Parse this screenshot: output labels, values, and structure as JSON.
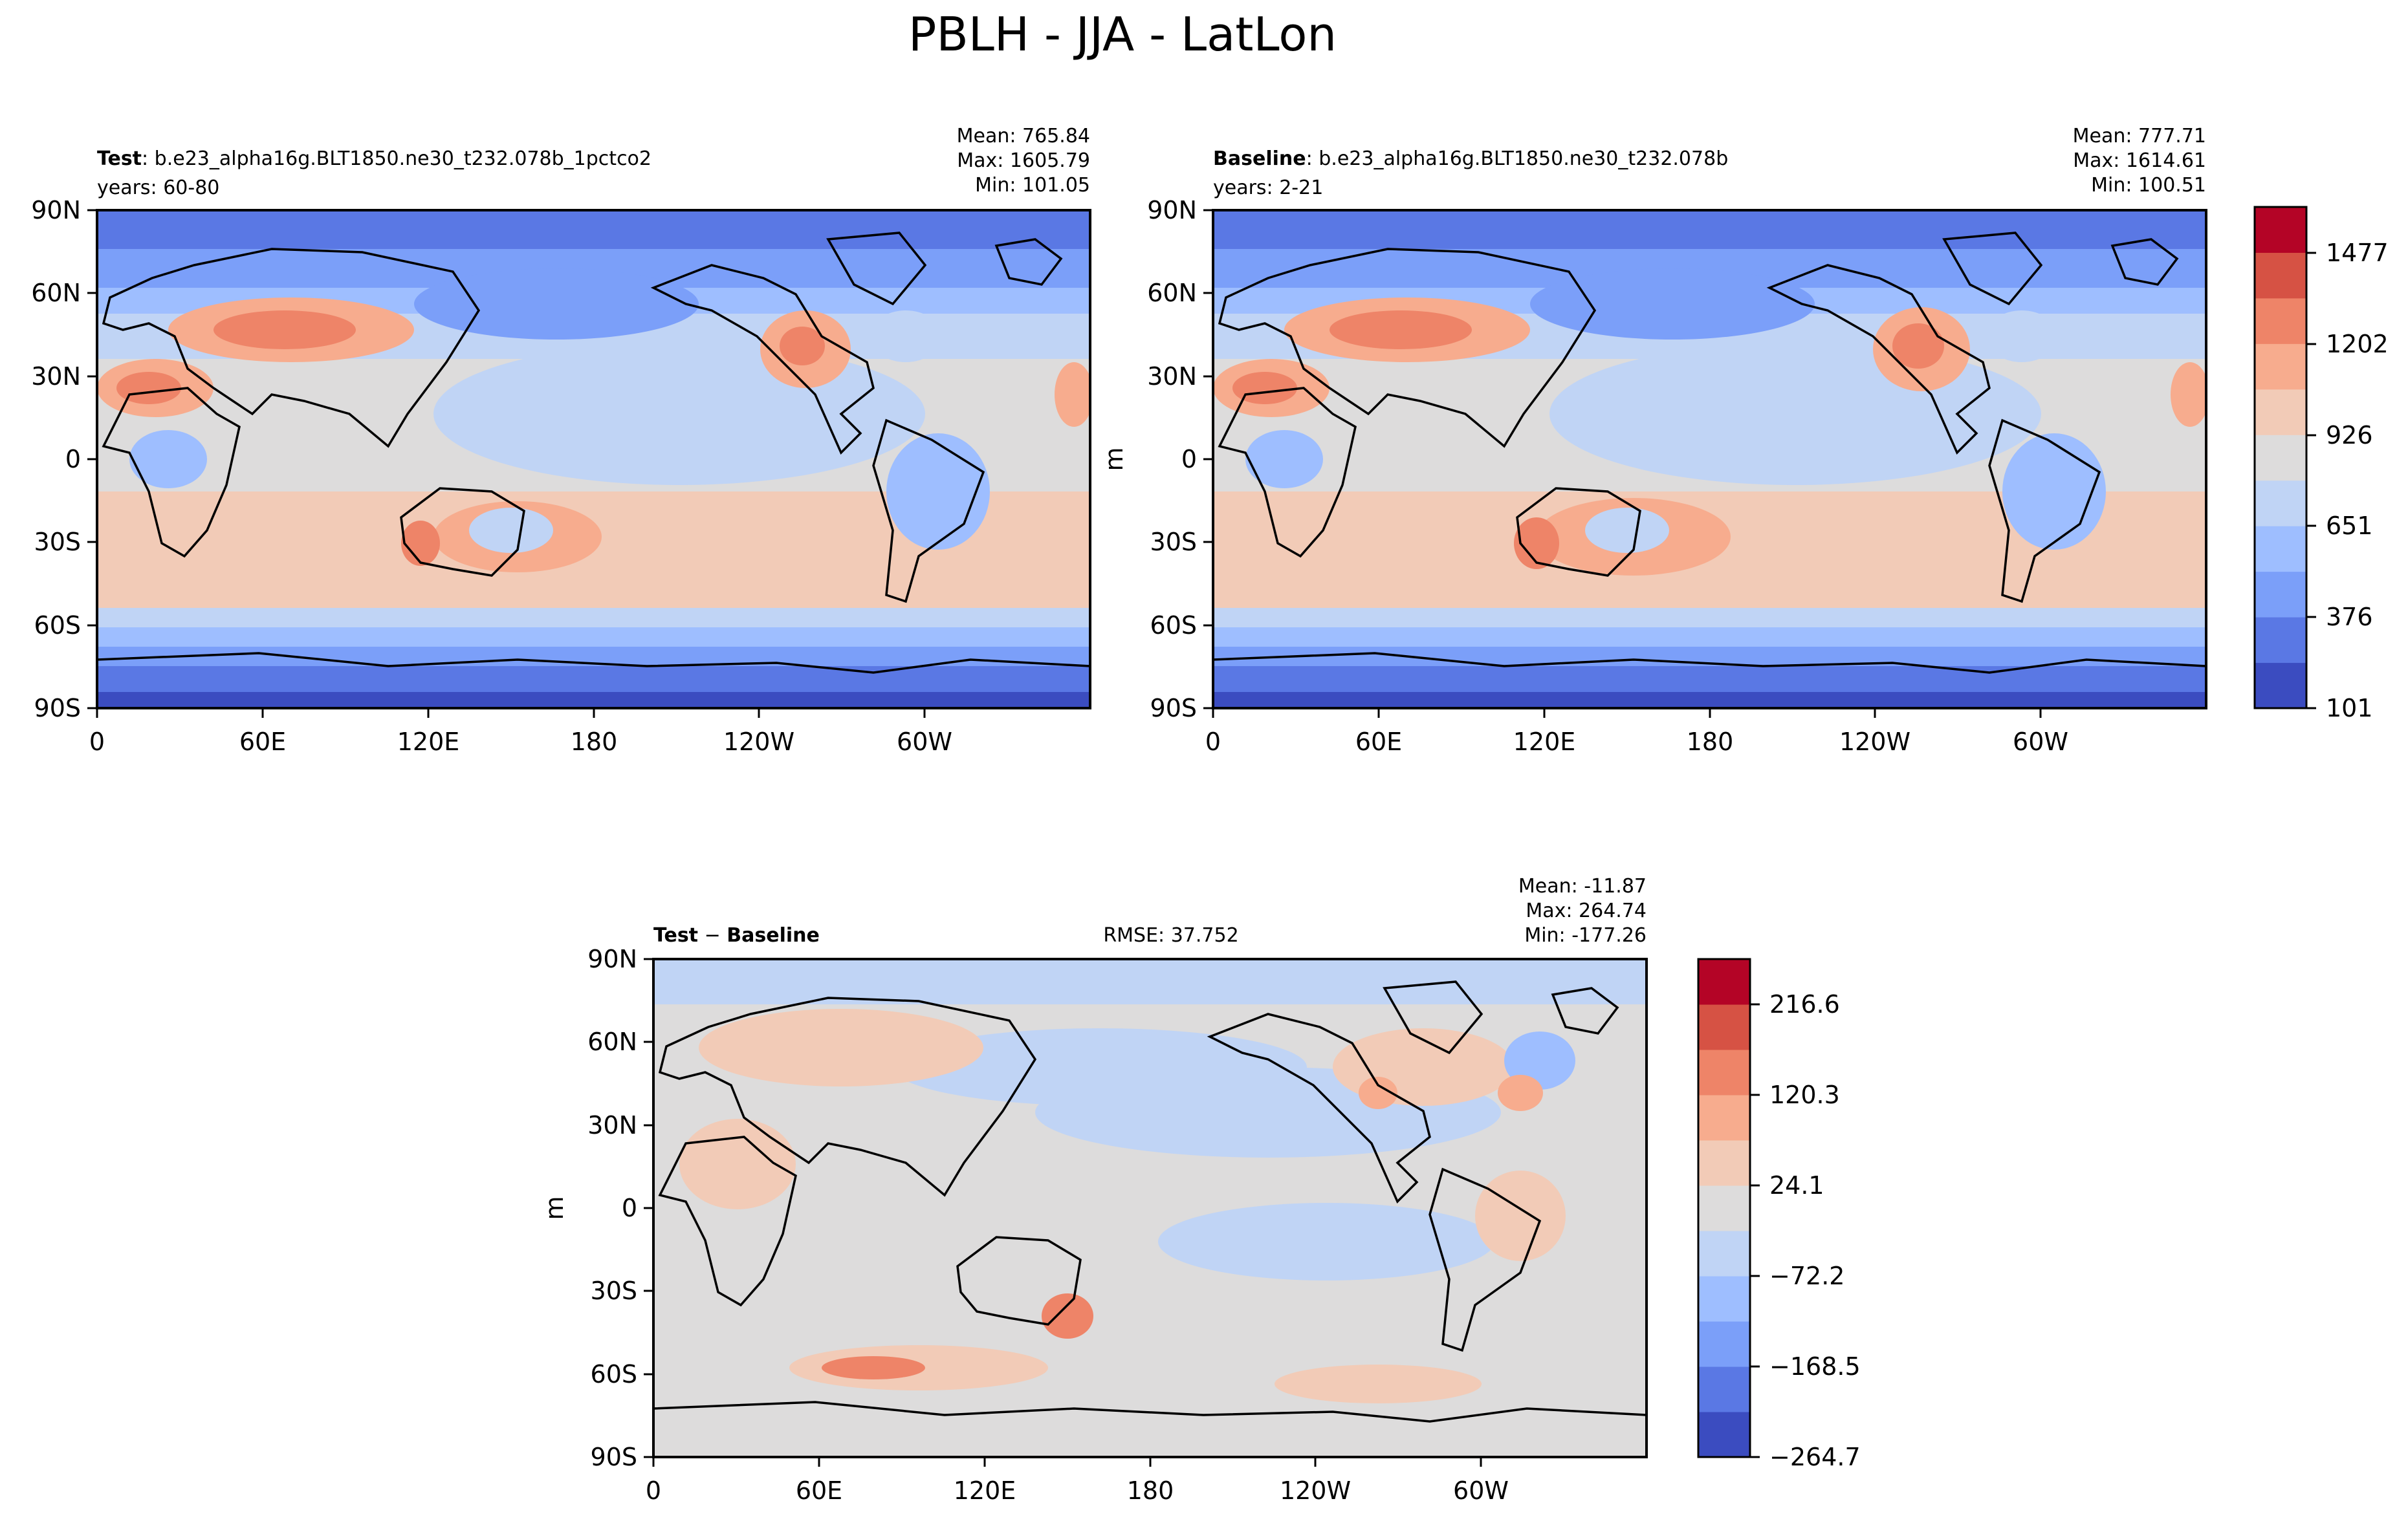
{
  "figure": {
    "title": "PBLH - JJA - LatLon"
  },
  "colormap": [
    "#3b4cc0",
    "#5a78e4",
    "#7b9ff9",
    "#9ebeff",
    "#c0d4f5",
    "#dddcdc",
    "#f2cbb7",
    "#f7ac8e",
    "#ee8468",
    "#d65244",
    "#b40426"
  ],
  "chart_data": [
    {
      "type": "heatmap",
      "panel": "test",
      "label_bold": "Test",
      "label_rest": ": b.e23_alpha16g.BLT1850.ne30_t232.078b_1pctco2",
      "years": "years: 60-80",
      "stats": {
        "mean": "Mean: 765.84",
        "max": "Max: 1605.79",
        "min": "Min: 101.05"
      },
      "mean": 765.84,
      "max": 1605.79,
      "min": 101.05,
      "xticks": [
        "0",
        "60E",
        "120E",
        "180",
        "120W",
        "60W"
      ],
      "yticks": [
        "90N",
        "60N",
        "30N",
        "0",
        "30S",
        "60S",
        "90S"
      ],
      "ylabel": "",
      "range": [
        101,
        1615
      ]
    },
    {
      "type": "heatmap",
      "panel": "baseline",
      "label_bold": "Baseline",
      "label_rest": ": b.e23_alpha16g.BLT1850.ne30_t232.078b",
      "years": "years: 2-21",
      "stats": {
        "mean": "Mean: 777.71",
        "max": "Max: 1614.61",
        "min": "Min: 100.51"
      },
      "mean": 777.71,
      "max": 1614.61,
      "min": 100.51,
      "xticks": [
        "0",
        "60E",
        "120E",
        "180",
        "120W",
        "60W"
      ],
      "yticks": [
        "90N",
        "60N",
        "30N",
        "0",
        "30S",
        "60S",
        "90S"
      ],
      "ylabel": "m",
      "colorbar_ticks": [
        "101",
        "376",
        "651",
        "926",
        "1202",
        "1477"
      ],
      "range": [
        101,
        1615
      ]
    },
    {
      "type": "heatmap",
      "panel": "diff",
      "label_bold": "Test",
      "label_mid": " − ",
      "label_bold2": "Baseline",
      "rmse": "RMSE: 37.752",
      "stats": {
        "mean": "Mean: -11.87",
        "max": "Max: 264.74",
        "min": "Min: -177.26"
      },
      "mean": -11.87,
      "max": 264.74,
      "min": -177.26,
      "xticks": [
        "0",
        "60E",
        "120E",
        "180",
        "120W",
        "60W"
      ],
      "yticks": [
        "90N",
        "60N",
        "30N",
        "0",
        "30S",
        "60S",
        "90S"
      ],
      "ylabel": "m",
      "colorbar_ticks": [
        "−264.7",
        "−168.5",
        "−72.2",
        "24.1",
        "120.3",
        "216.6"
      ],
      "range": [
        -264.7,
        264.7
      ]
    }
  ]
}
